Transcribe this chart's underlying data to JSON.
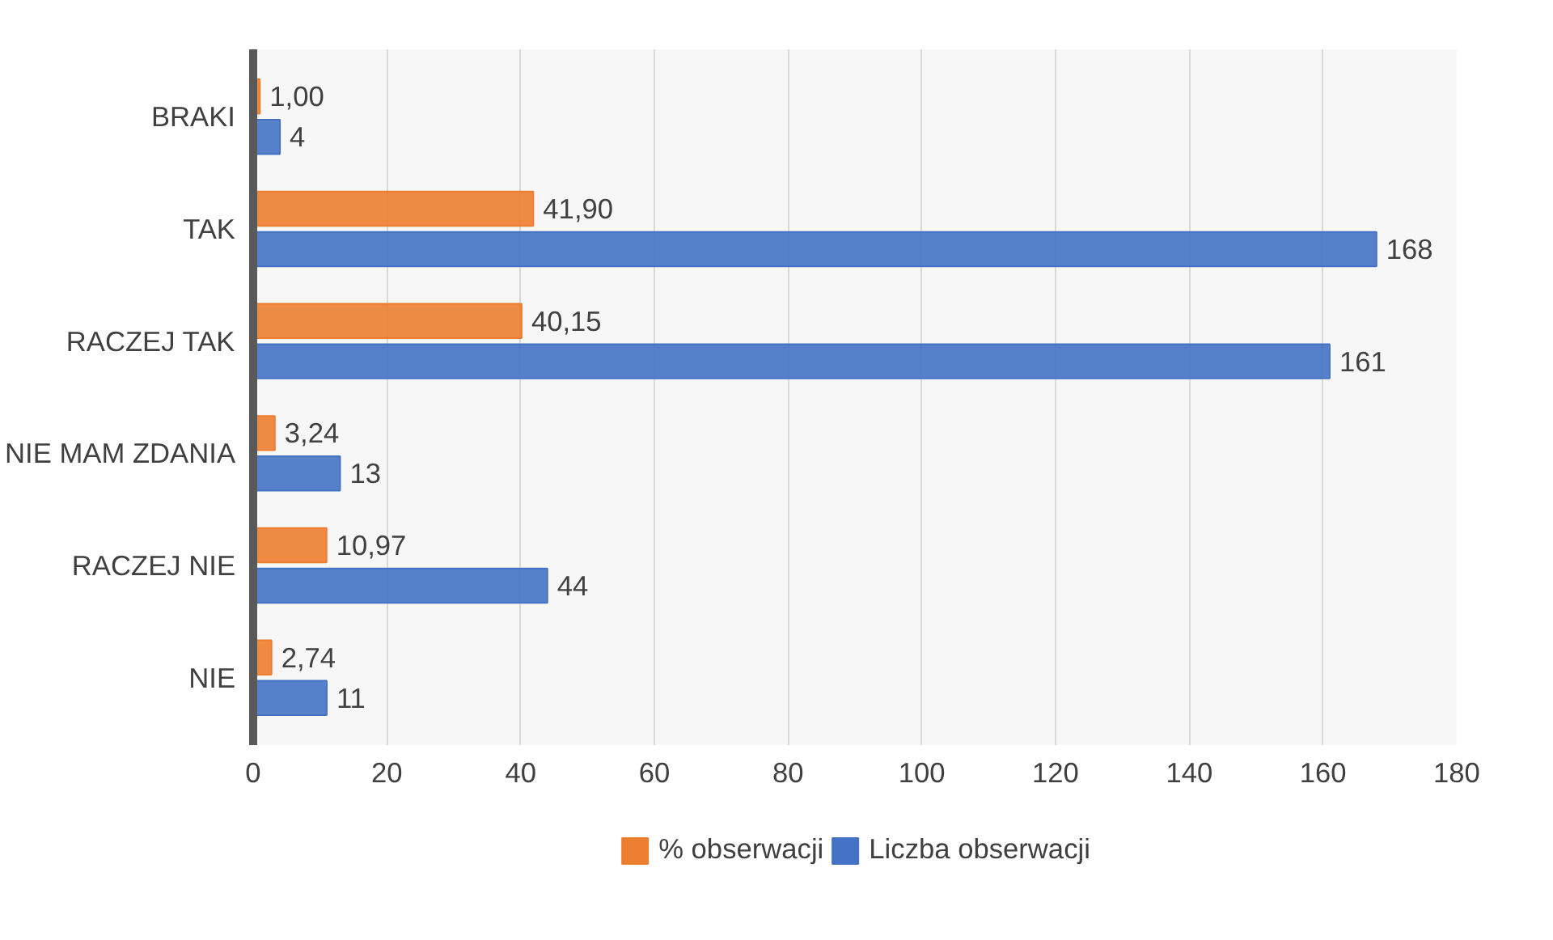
{
  "chart_data": {
    "type": "bar",
    "orientation": "horizontal",
    "categories": [
      "BRAKI",
      "TAK",
      "RACZEJ TAK",
      "NIE MAM ZDANIA",
      "RACZEJ NIE",
      "NIE"
    ],
    "series": [
      {
        "name": "% obserwacji",
        "color": "#ed7d31",
        "values": [
          1.0,
          41.9,
          40.15,
          3.24,
          10.97,
          2.74
        ],
        "value_labels": [
          "1,00",
          "41,90",
          "40,15",
          "3,24",
          "10,97",
          "2,74"
        ]
      },
      {
        "name": "Liczba obserwacji",
        "color": "#4472c4",
        "values": [
          4,
          168,
          161,
          13,
          44,
          11
        ],
        "value_labels": [
          "4",
          "168",
          "161",
          "13",
          "44",
          "11"
        ]
      }
    ],
    "xlim": [
      0,
      180
    ],
    "xticks": [
      0,
      20,
      40,
      60,
      80,
      100,
      120,
      140,
      160,
      180
    ],
    "grid": "x",
    "legend": "bottom"
  }
}
